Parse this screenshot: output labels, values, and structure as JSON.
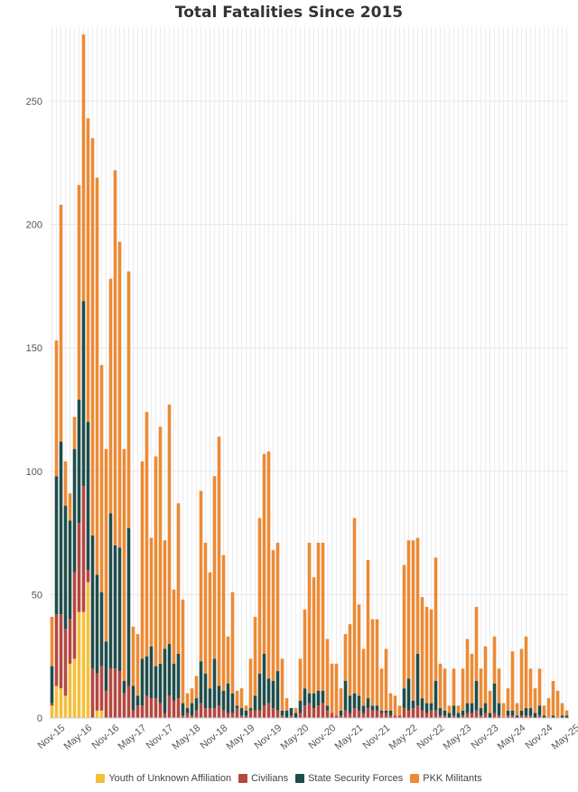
{
  "chart_data": {
    "type": "bar",
    "stacked": true,
    "title": "Total Fatalities Since 2015",
    "xlabel": "",
    "ylabel": "",
    "ylim": [
      0,
      280
    ],
    "yticks": [
      0,
      50,
      100,
      150,
      200,
      250
    ],
    "grid": "vertical and horizontal",
    "legend_position": "bottom",
    "x_tick_labels": [
      "Nov-15",
      "May-16",
      "Nov-16",
      "May-17",
      "Nov-17",
      "May-18",
      "Nov-18",
      "May-19",
      "Nov-19",
      "May-20",
      "Nov-20",
      "May-21",
      "Nov-21",
      "May-22",
      "Nov-22",
      "May-23",
      "Nov-23",
      "May-24",
      "Nov-24",
      "May-25"
    ],
    "totals": [
      41,
      153,
      208,
      104,
      91,
      122,
      216,
      277,
      243,
      235,
      219,
      143,
      109,
      178,
      222,
      193,
      109,
      181,
      37,
      34,
      104,
      124,
      73,
      106,
      118,
      72,
      127,
      52,
      87,
      48,
      10,
      12,
      17,
      92,
      71,
      59,
      98,
      114,
      66,
      33,
      51,
      11,
      12,
      5,
      24,
      41,
      81,
      107,
      108,
      68,
      71,
      24,
      8,
      4,
      4,
      24,
      44,
      71,
      57,
      71,
      71,
      32,
      22,
      22,
      12,
      34,
      38,
      81,
      46,
      28,
      64,
      40,
      40,
      20,
      28,
      10,
      9,
      5,
      62,
      72,
      72,
      73,
      49,
      45,
      44,
      65,
      22,
      20,
      5,
      20,
      5,
      20,
      32,
      26,
      45,
      20,
      29,
      11,
      33,
      20,
      6,
      12,
      27,
      6,
      28,
      33,
      20,
      12,
      20,
      5,
      8,
      15,
      11,
      6,
      3
    ],
    "series": [
      {
        "name": "Youth of Unknown Affiliation",
        "color": "#f4bf3a",
        "values": [
          5,
          13,
          12,
          9,
          22,
          24,
          43,
          43,
          55,
          0,
          3,
          3,
          0,
          0,
          0,
          0,
          0,
          0,
          0,
          0,
          0,
          0,
          0,
          0,
          0,
          0,
          0,
          0,
          0,
          0,
          0,
          0,
          0,
          0,
          0,
          0,
          0,
          0,
          0,
          0,
          0,
          0,
          0,
          0,
          0,
          0,
          0,
          0,
          0,
          0,
          0,
          0,
          0,
          0,
          0,
          0,
          0,
          0,
          0,
          0,
          0,
          0,
          0,
          0,
          0,
          0,
          0,
          0,
          0,
          0,
          0,
          0,
          0,
          0,
          0,
          0,
          0,
          0,
          0,
          0,
          0,
          0,
          0,
          0,
          0,
          0,
          0,
          0,
          0,
          0,
          0,
          0,
          0,
          0,
          0,
          0,
          0,
          0,
          0,
          0,
          0,
          0,
          0,
          0,
          0,
          0,
          0,
          0,
          0,
          0,
          0,
          0,
          0,
          0,
          0
        ]
      },
      {
        "name": "Civilians",
        "color": "#b5473f",
        "values": [
          1,
          29,
          30,
          27,
          18,
          35,
          36,
          51,
          5,
          20,
          15,
          18,
          11,
          20,
          20,
          19,
          10,
          13,
          3,
          5,
          5,
          9,
          8,
          8,
          6,
          2,
          9,
          7,
          8,
          1,
          2,
          1,
          3,
          6,
          4,
          4,
          4,
          5,
          3,
          2,
          2,
          4,
          1,
          1,
          3,
          3,
          3,
          5,
          6,
          4,
          3,
          1,
          0,
          1,
          0,
          2,
          5,
          6,
          4,
          5,
          6,
          3,
          2,
          1,
          1,
          3,
          2,
          4,
          3,
          2,
          4,
          3,
          3,
          2,
          2,
          1,
          1,
          1,
          4,
          3,
          4,
          5,
          3,
          2,
          3,
          3,
          1,
          1,
          0,
          1,
          0,
          1,
          2,
          2,
          3,
          1,
          2,
          0,
          2,
          1,
          0,
          1,
          1,
          0,
          1,
          1,
          1,
          0,
          1,
          0,
          0,
          0,
          0,
          0,
          0
        ]
      },
      {
        "name": "State Security Forces",
        "color": "#1e4d4a",
        "values": [
          15,
          56,
          70,
          50,
          40,
          50,
          50,
          75,
          60,
          54,
          40,
          30,
          20,
          63,
          50,
          50,
          5,
          64,
          10,
          4,
          19,
          16,
          21,
          13,
          16,
          26,
          21,
          15,
          18,
          5,
          2,
          5,
          5,
          17,
          14,
          8,
          20,
          8,
          8,
          12,
          8,
          1,
          3,
          2,
          1,
          6,
          15,
          21,
          10,
          11,
          16,
          2,
          3,
          3,
          2,
          5,
          7,
          4,
          6,
          6,
          5,
          2,
          0,
          0,
          2,
          12,
          7,
          6,
          6,
          3,
          4,
          2,
          2,
          1,
          1,
          2,
          0,
          0,
          8,
          13,
          3,
          21,
          5,
          4,
          3,
          12,
          3,
          2,
          2,
          4,
          2,
          2,
          4,
          4,
          12,
          3,
          4,
          2,
          12,
          5,
          0,
          2,
          2,
          1,
          2,
          3,
          3,
          2,
          4,
          1,
          0,
          1,
          0,
          1,
          1
        ]
      },
      {
        "name": "PKK Militants",
        "color": "#ec8a36",
        "values": [
          20,
          55,
          96,
          18,
          11,
          13,
          87,
          108,
          123,
          161,
          161,
          92,
          78,
          95,
          152,
          124,
          94,
          104,
          24,
          25,
          80,
          99,
          44,
          85,
          96,
          44,
          97,
          30,
          61,
          42,
          6,
          6,
          9,
          69,
          53,
          47,
          74,
          101,
          55,
          19,
          41,
          6,
          8,
          2,
          20,
          32,
          63,
          81,
          92,
          53,
          52,
          21,
          5,
          0,
          2,
          17,
          32,
          61,
          47,
          60,
          60,
          27,
          20,
          21,
          9,
          19,
          29,
          71,
          37,
          23,
          56,
          35,
          35,
          17,
          25,
          7,
          8,
          4,
          50,
          56,
          65,
          47,
          41,
          39,
          38,
          50,
          18,
          17,
          3,
          15,
          3,
          17,
          26,
          20,
          30,
          16,
          23,
          9,
          19,
          14,
          6,
          9,
          24,
          5,
          25,
          29,
          16,
          10,
          15,
          4,
          8,
          14,
          11,
          5,
          2
        ]
      }
    ]
  },
  "legend": {
    "items": [
      {
        "label": "Youth of Unknown Affiliation",
        "color": "#f4bf3a"
      },
      {
        "label": "Civilians",
        "color": "#b5473f"
      },
      {
        "label": "State Security Forces",
        "color": "#1e4d4a"
      },
      {
        "label": "PKK Militants",
        "color": "#ec8a36"
      }
    ]
  }
}
